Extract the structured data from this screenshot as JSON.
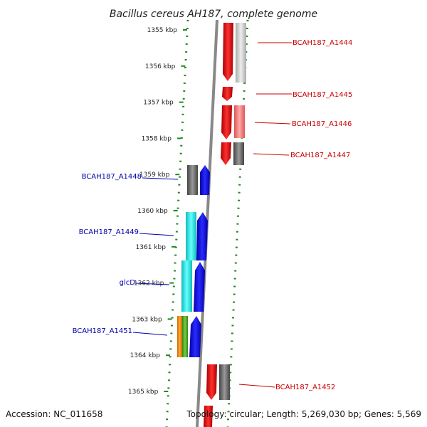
{
  "title": "Bacillus cereus AH187, complete genome",
  "footer": {
    "accession": "Accession: NC_011658",
    "topology": "Topology: circular; Length: 5,269,030 bp; Genes: 5,569"
  },
  "ticks": [
    "1355 kbp",
    "1356 kbp",
    "1357 kbp",
    "1358 kbp",
    "1359 kbp",
    "1360 kbp",
    "1361 kbp",
    "1362 kbp",
    "1363 kbp",
    "1364 kbp",
    "1365 kbp"
  ],
  "genes_right": [
    {
      "label": "BCAH187_A1444",
      "color": "#cc0000"
    },
    {
      "label": "BCAH187_A1445",
      "color": "#cc0000"
    },
    {
      "label": "BCAH187_A1446",
      "color": "#cc0000"
    },
    {
      "label": "BCAH187_A1447",
      "color": "#cc0000"
    },
    {
      "label": "BCAH187_A1452",
      "color": "#cc0000"
    }
  ],
  "genes_left": [
    {
      "label": "BCAH187_A1448",
      "color": "#0000aa"
    },
    {
      "label": "BCAH187_A1449",
      "color": "#0000aa"
    },
    {
      "label": "glcD",
      "color": "#0000aa"
    },
    {
      "label": "BCAH187_A1451",
      "color": "#0000aa"
    }
  ],
  "colors": {
    "forward_strand": "#0000ee",
    "reverse_strand": "#ee0000",
    "cog_cyan": "#22dddd",
    "cog_gray": "#777777",
    "cog_orange": "#ee8800",
    "cog_green": "#44aa22",
    "dotted_border": "#228822",
    "backbone": "#888888"
  }
}
